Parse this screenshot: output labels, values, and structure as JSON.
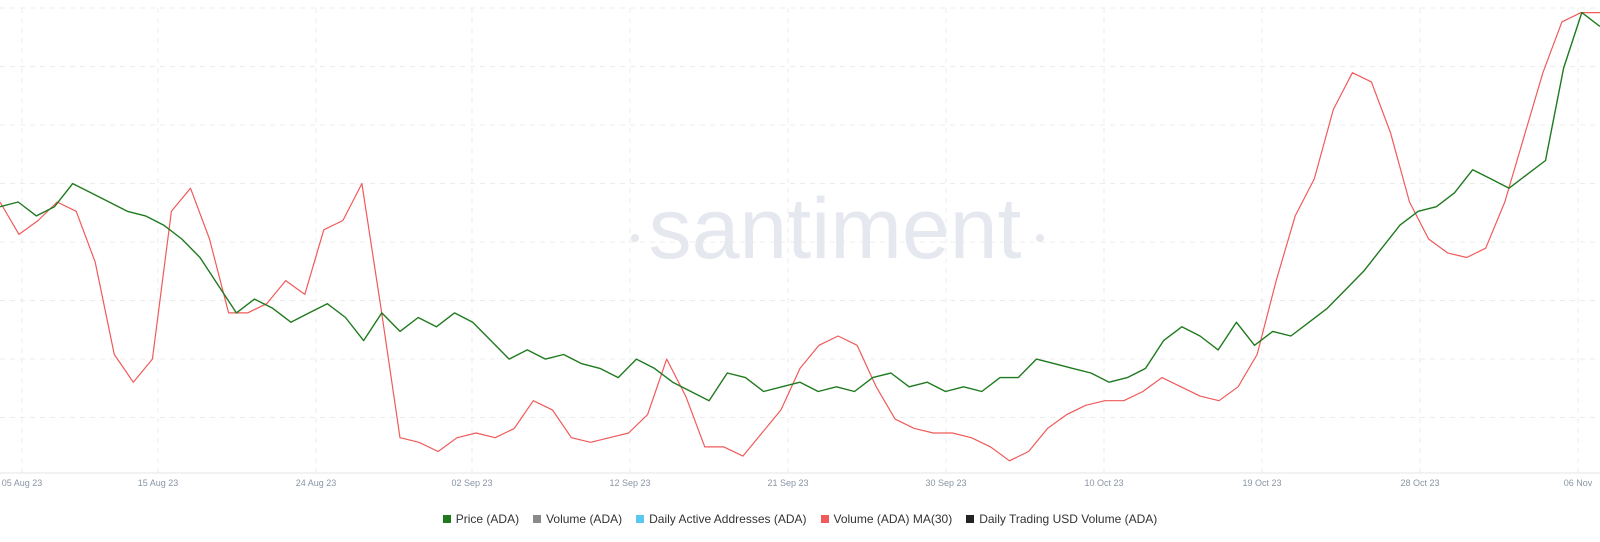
{
  "watermark": "santiment",
  "legend": [
    {
      "label": "Price (ADA)",
      "color": "#1f7a1f"
    },
    {
      "label": "Volume (ADA)",
      "color": "#8a8a8a"
    },
    {
      "label": "Daily Active Addresses (ADA)",
      "color": "#5bc8f0"
    },
    {
      "label": "Volume (ADA) MA(30)",
      "color": "#f05a5a"
    },
    {
      "label": "Daily Trading USD Volume (ADA)",
      "color": "#222222"
    }
  ],
  "chart_data": {
    "type": "line",
    "x_tick_labels": [
      "05 Aug 23",
      "15 Aug 23",
      "24 Aug 23",
      "02 Sep 23",
      "12 Sep 23",
      "21 Sep 23",
      "30 Sep 23",
      "10 Oct 23",
      "19 Oct 23",
      "28 Oct 23",
      "06 Nov"
    ],
    "grid": true,
    "legend_position": "bottom",
    "y_axis_labels": false,
    "series": [
      {
        "name": "Price (ADA)",
        "color": "#1f7a1f",
        "values": [
          57,
          58,
          55,
          57,
          62,
          60,
          58,
          56,
          55,
          53,
          50,
          46,
          40,
          34,
          37,
          35,
          32,
          34,
          36,
          33,
          28,
          34,
          30,
          33,
          31,
          34,
          32,
          28,
          24,
          26,
          24,
          25,
          23,
          22,
          20,
          24,
          22,
          19,
          17,
          15,
          21,
          20,
          17,
          18,
          19,
          17,
          18,
          17,
          20,
          21,
          18,
          19,
          17,
          18,
          17,
          20,
          20,
          24,
          23,
          22,
          21,
          19,
          20,
          22,
          28,
          31,
          29,
          26,
          32,
          27,
          30,
          29,
          32,
          35,
          39,
          43,
          48,
          53,
          56,
          57,
          60,
          65,
          63,
          61,
          64,
          67,
          87,
          99,
          96
        ]
      },
      {
        "name": "Volume (ADA) MA(30)",
        "color": "#f05a5a",
        "values": [
          58,
          51,
          54,
          58,
          56,
          45,
          25,
          19,
          24,
          56,
          61,
          50,
          34,
          34,
          36,
          41,
          38,
          52,
          54,
          62,
          35,
          7,
          6,
          4,
          7,
          8,
          7,
          9,
          15,
          13,
          7,
          6,
          7,
          8,
          12,
          24,
          16,
          5,
          5,
          3,
          8,
          13,
          22,
          27,
          29,
          27,
          18,
          11,
          9,
          8,
          8,
          7,
          5,
          2,
          4,
          9,
          12,
          14,
          15,
          15,
          17,
          20,
          18,
          16,
          15,
          18,
          25,
          41,
          55,
          63,
          78,
          86,
          84,
          73,
          58,
          50,
          47,
          46,
          48,
          58,
          72,
          86,
          97,
          99,
          99
        ]
      }
    ]
  }
}
